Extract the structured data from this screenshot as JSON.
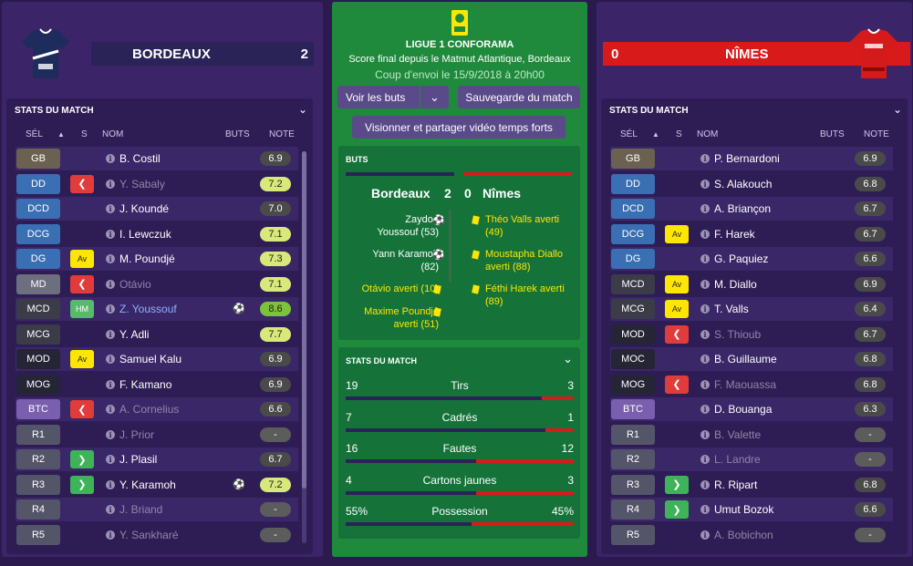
{
  "home": {
    "name": "BORDEAUX",
    "score": "2"
  },
  "away": {
    "name": "NÎMES",
    "score": "0"
  },
  "league": "LIGUE 1 CONFORAMA",
  "match": {
    "line1": "Score final depuis le Matmut Atlantique, Bordeaux",
    "line2": "Coup d'envoi le 15/9/2018 à 20h00"
  },
  "buttons": {
    "view_goals": "Voir les buts",
    "save_match": "Sauvegarde du match",
    "watch": "Visionner et partager vidéo temps forts"
  },
  "goals_box": {
    "title": "BUTS",
    "home": "Bordeaux",
    "home_score": "2",
    "away_score": "0",
    "away": "Nîmes"
  },
  "events_left": [
    {
      "l1": "Zaydou",
      "l2": "Youssouf (53)",
      "type": "goal"
    },
    {
      "l1": "Yann Karamoh",
      "l2": "(82)",
      "type": "goal"
    },
    {
      "l1": "Otávio averti (10)",
      "l2": "",
      "type": "card"
    },
    {
      "l1": "Maxime Poundjé",
      "l2": "averti (51)",
      "type": "card"
    }
  ],
  "events_right": [
    {
      "l1": "Théo Valls averti",
      "l2": "(49)"
    },
    {
      "l1": "Moustapha Diallo",
      "l2": "averti (88)"
    },
    {
      "l1": "Féthi Harek averti",
      "l2": "(89)"
    }
  ],
  "match_stats": {
    "title": "STATS DU MATCH",
    "rows": [
      {
        "label": "Tirs",
        "home": "19",
        "away": "3",
        "home_share": 0.86
      },
      {
        "label": "Cadrés",
        "home": "7",
        "away": "1",
        "home_share": 0.875
      },
      {
        "label": "Fautes",
        "home": "16",
        "away": "12",
        "home_share": 0.57
      },
      {
        "label": "Cartons jaunes",
        "home": "4",
        "away": "3",
        "home_share": 0.57
      },
      {
        "label": "Possession",
        "home": "55%",
        "away": "45%",
        "home_share": 0.55
      }
    ]
  },
  "stats_panel": {
    "title": "STATS DU MATCH",
    "cols": {
      "sel": "SÉL",
      "s": "S",
      "nom": "NOM",
      "buts": "BUTS",
      "note": "NOTE"
    }
  },
  "left_players": [
    {
      "pos": "GB",
      "pcol": "#6b6150",
      "name": "B. Costil",
      "note": "6.9",
      "nbg": "#4a4a4a",
      "ncol": "#fff"
    },
    {
      "pos": "DD",
      "pcol": "#3a6fb3",
      "badge": "out",
      "name": "Y. Sabaly",
      "dim": true,
      "note": "7.2",
      "nbg": "#d8e87a",
      "ncol": "#222"
    },
    {
      "pos": "DCD",
      "pcol": "#3a6fb3",
      "name": "J. Koundé",
      "note": "7.0",
      "nbg": "#4a4a4a",
      "ncol": "#fff"
    },
    {
      "pos": "DCG",
      "pcol": "#3a6fb3",
      "name": "I. Lewczuk",
      "note": "7.1",
      "nbg": "#d8e87a",
      "ncol": "#222"
    },
    {
      "pos": "DG",
      "pcol": "#3a6fb3",
      "badge": "Av",
      "name": "M. Poundjé",
      "note": "7.3",
      "nbg": "#d8e87a",
      "ncol": "#222"
    },
    {
      "pos": "MD",
      "pcol": "#6d6e7e",
      "badge": "out",
      "name": "Otávio",
      "dim": true,
      "note": "7.1",
      "nbg": "#d8e87a",
      "ncol": "#222"
    },
    {
      "pos": "MCD",
      "pcol": "#3c3c48",
      "badge": "HM",
      "name": "Z. Youssouf",
      "sel": true,
      "goal": true,
      "note": "8.6",
      "nbg": "#7cc33a",
      "ncol": "#222"
    },
    {
      "pos": "MCG",
      "pcol": "#3c3c48",
      "name": "Y. Adli",
      "note": "7.7",
      "nbg": "#d8e87a",
      "ncol": "#222"
    },
    {
      "pos": "MOD",
      "pcol": "#252535",
      "badge": "Av",
      "name": "Samuel Kalu",
      "note": "6.9",
      "nbg": "#4a4a4a",
      "ncol": "#fff"
    },
    {
      "pos": "MOG",
      "pcol": "#252535",
      "name": "F. Kamano",
      "note": "6.9",
      "nbg": "#4a4a4a",
      "ncol": "#fff"
    },
    {
      "pos": "BTC",
      "pcol": "#7a5fae",
      "badge": "out",
      "name": "A. Cornelius",
      "dim": true,
      "note": "6.6",
      "nbg": "#4a4a4a",
      "ncol": "#fff"
    },
    {
      "pos": "R1",
      "pcol": "#55556a",
      "name": "J. Prior",
      "dim": true,
      "note": "-",
      "nbg": "#5c5c5c",
      "ncol": "#fff"
    },
    {
      "pos": "R2",
      "pcol": "#55556a",
      "badge": "in",
      "name": "J. Plasil",
      "note": "6.7",
      "nbg": "#4a4a4a",
      "ncol": "#fff"
    },
    {
      "pos": "R3",
      "pcol": "#55556a",
      "badge": "in",
      "name": "Y. Karamoh",
      "goal": true,
      "note": "7.2",
      "nbg": "#d8e87a",
      "ncol": "#222"
    },
    {
      "pos": "R4",
      "pcol": "#55556a",
      "name": "J. Briand",
      "dim": true,
      "note": "-",
      "nbg": "#5c5c5c",
      "ncol": "#fff"
    },
    {
      "pos": "R5",
      "pcol": "#55556a",
      "name": "Y. Sankharé",
      "dim": true,
      "note": "-",
      "nbg": "#5c5c5c",
      "ncol": "#fff"
    }
  ],
  "right_players": [
    {
      "pos": "GB",
      "pcol": "#6b6150",
      "name": "P. Bernardoni",
      "note": "6.9",
      "nbg": "#4a4a4a",
      "ncol": "#fff"
    },
    {
      "pos": "DD",
      "pcol": "#3a6fb3",
      "name": "S. Alakouch",
      "note": "6.8",
      "nbg": "#4a4a4a",
      "ncol": "#fff"
    },
    {
      "pos": "DCD",
      "pcol": "#3a6fb3",
      "name": "A. Briançon",
      "note": "6.7",
      "nbg": "#4a4a4a",
      "ncol": "#fff"
    },
    {
      "pos": "DCG",
      "pcol": "#3a6fb3",
      "badge": "Av",
      "name": "F. Harek",
      "note": "6.7",
      "nbg": "#4a4a4a",
      "ncol": "#fff"
    },
    {
      "pos": "DG",
      "pcol": "#3a6fb3",
      "name": "G. Paquiez",
      "note": "6.6",
      "nbg": "#4a4a4a",
      "ncol": "#fff"
    },
    {
      "pos": "MCD",
      "pcol": "#3c3c48",
      "badge": "Av",
      "name": "M. Diallo",
      "note": "6.9",
      "nbg": "#4a4a4a",
      "ncol": "#fff"
    },
    {
      "pos": "MCG",
      "pcol": "#3c3c48",
      "badge": "Av",
      "name": "T. Valls",
      "note": "6.4",
      "nbg": "#4a4a4a",
      "ncol": "#fff"
    },
    {
      "pos": "MOD",
      "pcol": "#252535",
      "badge": "out",
      "name": "S. Thioub",
      "dim": true,
      "note": "6.7",
      "nbg": "#4a4a4a",
      "ncol": "#fff"
    },
    {
      "pos": "MOC",
      "pcol": "#252535",
      "name": "B. Guillaume",
      "note": "6.8",
      "nbg": "#4a4a4a",
      "ncol": "#fff"
    },
    {
      "pos": "MOG",
      "pcol": "#252535",
      "badge": "out",
      "name": "F. Maouassa",
      "dim": true,
      "note": "6.8",
      "nbg": "#4a4a4a",
      "ncol": "#fff"
    },
    {
      "pos": "BTC",
      "pcol": "#7a5fae",
      "name": "D. Bouanga",
      "note": "6.3",
      "nbg": "#4a4a4a",
      "ncol": "#fff"
    },
    {
      "pos": "R1",
      "pcol": "#55556a",
      "name": "B. Valette",
      "dim": true,
      "note": "-",
      "nbg": "#5c5c5c",
      "ncol": "#fff"
    },
    {
      "pos": "R2",
      "pcol": "#55556a",
      "name": "L. Landre",
      "dim": true,
      "note": "-",
      "nbg": "#5c5c5c",
      "ncol": "#fff"
    },
    {
      "pos": "R3",
      "pcol": "#55556a",
      "badge": "in",
      "name": "R. Ripart",
      "note": "6.8",
      "nbg": "#4a4a4a",
      "ncol": "#fff"
    },
    {
      "pos": "R4",
      "pcol": "#55556a",
      "badge": "in",
      "name": "Umut Bozok",
      "note": "6.6",
      "nbg": "#4a4a4a",
      "ncol": "#fff"
    },
    {
      "pos": "R5",
      "pcol": "#55556a",
      "name": "A. Bobichon",
      "dim": true,
      "note": "-",
      "nbg": "#5c5c5c",
      "ncol": "#fff"
    }
  ]
}
